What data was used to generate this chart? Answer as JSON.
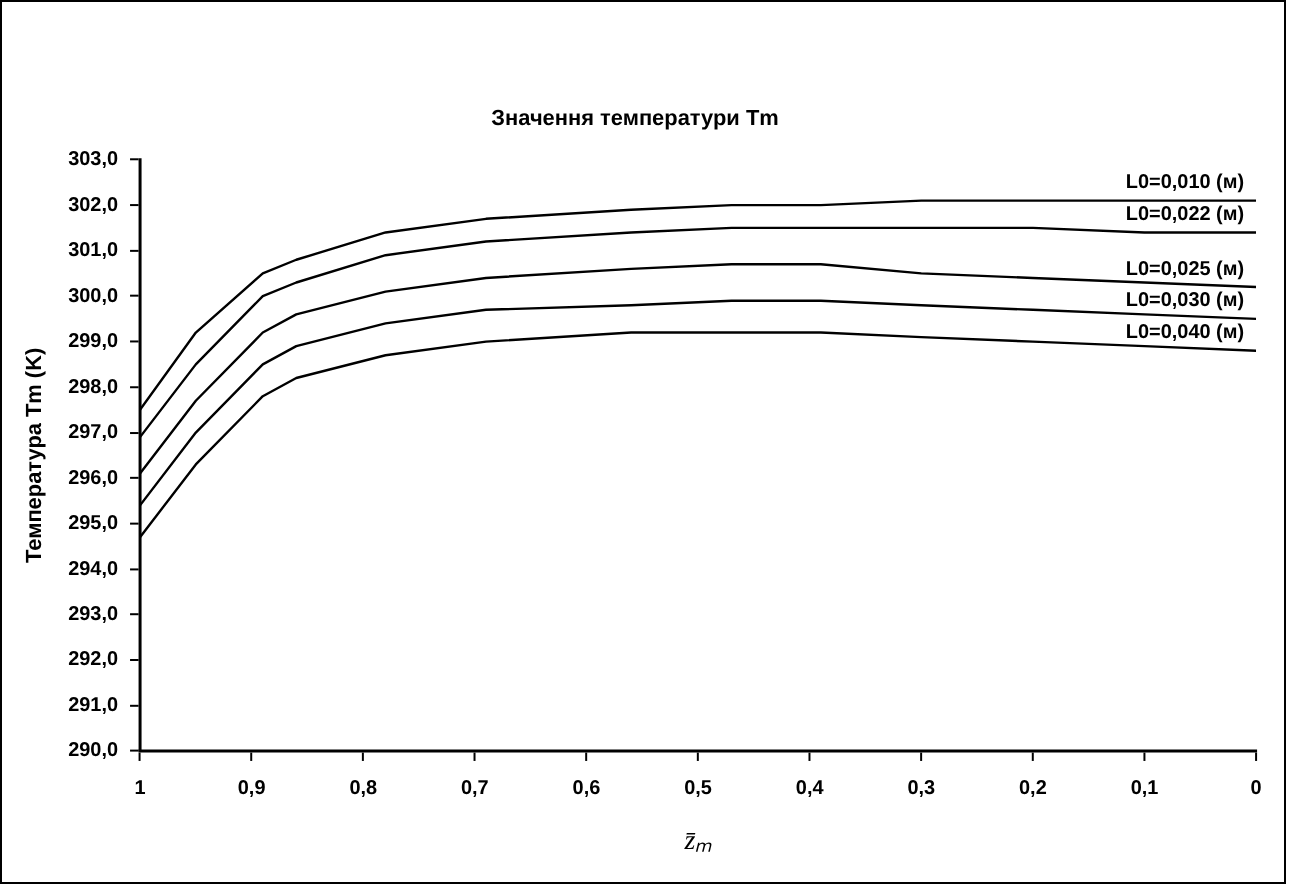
{
  "chart_data": {
    "type": "line",
    "title": "Значення температури Tm",
    "xlabel": "z̄ₘ",
    "ylabel": "Температура Tm (K)",
    "x": [
      1,
      0.95,
      0.89,
      0.86,
      0.78,
      0.69,
      0.56,
      0.47,
      0.39,
      0.3,
      0.2,
      0.1,
      0
    ],
    "series": [
      {
        "name": "L0=0,010 (м)",
        "color": "#000000",
        "values": [
          297.5,
          299.2,
          300.5,
          300.8,
          301.4,
          301.7,
          301.9,
          302.0,
          302.0,
          302.1,
          302.1,
          302.1,
          302.1
        ]
      },
      {
        "name": "L0=0,022 (м)",
        "color": "#000000",
        "values": [
          296.9,
          298.5,
          300.0,
          300.3,
          300.9,
          301.2,
          301.4,
          301.5,
          301.5,
          301.5,
          301.5,
          301.4,
          301.4
        ]
      },
      {
        "name": "L0=0,025 (м)",
        "color": "#000000",
        "values": [
          296.1,
          297.7,
          299.2,
          299.6,
          300.1,
          300.4,
          300.6,
          300.7,
          300.7,
          300.5,
          300.4,
          300.3,
          300.2
        ]
      },
      {
        "name": "L0=0,030 (м)",
        "color": "#000000",
        "values": [
          295.4,
          297.0,
          298.5,
          298.9,
          299.4,
          299.7,
          299.8,
          299.9,
          299.9,
          299.8,
          299.7,
          299.6,
          299.5
        ]
      },
      {
        "name": "L0=0,040 (м)",
        "color": "#000000",
        "values": [
          294.7,
          296.3,
          297.8,
          298.2,
          298.7,
          299.0,
          299.2,
          299.2,
          299.2,
          299.1,
          299.0,
          298.9,
          298.8
        ]
      }
    ],
    "xlim": [
      1,
      0
    ],
    "xticks": [
      {
        "value": 1,
        "label": "1"
      },
      {
        "value": 0.9,
        "label": "0,9"
      },
      {
        "value": 0.8,
        "label": "0,8"
      },
      {
        "value": 0.7,
        "label": "0,7"
      },
      {
        "value": 0.6,
        "label": "0,6"
      },
      {
        "value": 0.5,
        "label": "0,5"
      },
      {
        "value": 0.4,
        "label": "0,4"
      },
      {
        "value": 0.3,
        "label": "0,3"
      },
      {
        "value": 0.2,
        "label": "0,2"
      },
      {
        "value": 0.1,
        "label": "0,1"
      },
      {
        "value": 0,
        "label": "0"
      }
    ],
    "ylim": [
      290,
      303
    ],
    "yticks": [
      {
        "value": 290,
        "label": "290,0"
      },
      {
        "value": 291,
        "label": "291,0"
      },
      {
        "value": 292,
        "label": "292,0"
      },
      {
        "value": 293,
        "label": "293,0"
      },
      {
        "value": 294,
        "label": "294,0"
      },
      {
        "value": 295,
        "label": "295,0"
      },
      {
        "value": 296,
        "label": "296,0"
      },
      {
        "value": 297,
        "label": "297,0"
      },
      {
        "value": 298,
        "label": "298,0"
      },
      {
        "value": 299,
        "label": "299,0"
      },
      {
        "value": 300,
        "label": "300,0"
      },
      {
        "value": 301,
        "label": "301,0"
      },
      {
        "value": 302,
        "label": "302,0"
      },
      {
        "value": 303,
        "label": "303,0"
      }
    ],
    "grid": false,
    "legend": false,
    "marker": "none",
    "line_style": "solid"
  }
}
